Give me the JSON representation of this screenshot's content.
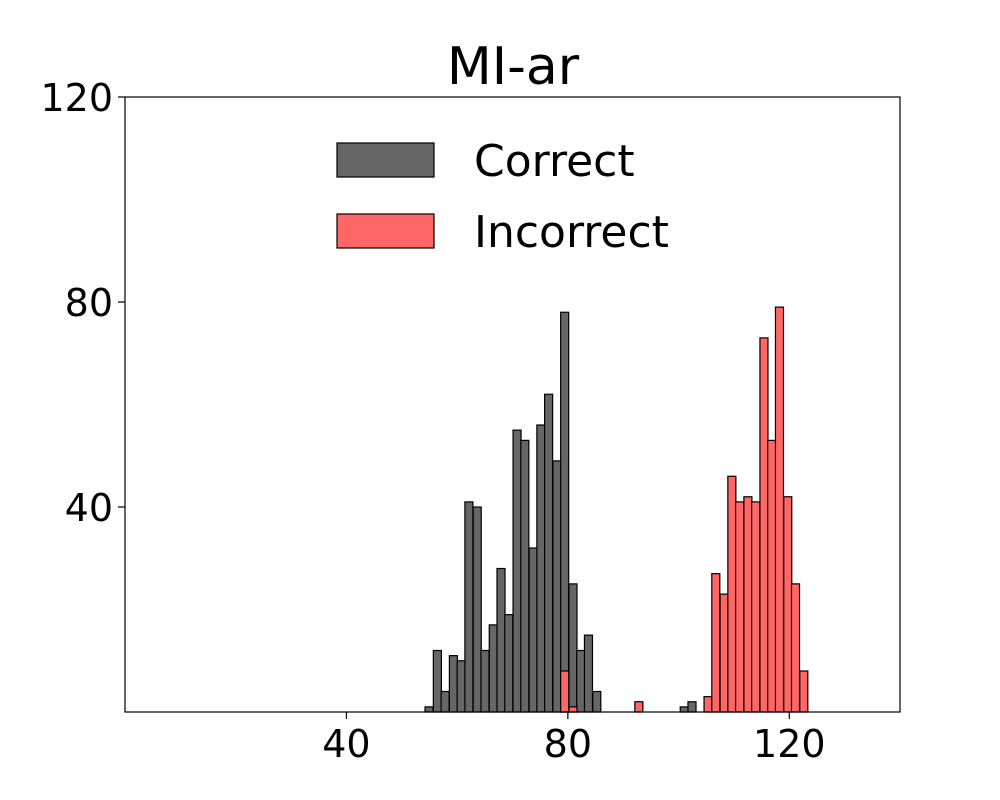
{
  "chart_data": {
    "type": "bar",
    "title": "MI-ar",
    "xlabel": "",
    "ylabel": "",
    "xlim": [
      0,
      140
    ],
    "ylim": [
      0,
      120
    ],
    "xticks": [
      40,
      80,
      120
    ],
    "yticks": [
      40,
      80,
      120
    ],
    "grid": false,
    "legend_position": "top-center",
    "bin_width": 1.45,
    "series": [
      {
        "name": "Correct",
        "color": "#666666",
        "bins": [
          {
            "x": 54.2,
            "count": 1
          },
          {
            "x": 55.7,
            "count": 12
          },
          {
            "x": 57.1,
            "count": 4
          },
          {
            "x": 58.6,
            "count": 11
          },
          {
            "x": 60.0,
            "count": 10
          },
          {
            "x": 61.4,
            "count": 41
          },
          {
            "x": 62.9,
            "count": 40
          },
          {
            "x": 64.3,
            "count": 12
          },
          {
            "x": 65.8,
            "count": 17
          },
          {
            "x": 67.2,
            "count": 28
          },
          {
            "x": 68.6,
            "count": 19
          },
          {
            "x": 70.1,
            "count": 55
          },
          {
            "x": 71.5,
            "count": 53
          },
          {
            "x": 73.0,
            "count": 32
          },
          {
            "x": 74.4,
            "count": 56
          },
          {
            "x": 75.8,
            "count": 62
          },
          {
            "x": 77.3,
            "count": 49
          },
          {
            "x": 78.7,
            "count": 78
          },
          {
            "x": 80.2,
            "count": 25
          },
          {
            "x": 81.6,
            "count": 12
          },
          {
            "x": 83.0,
            "count": 15
          },
          {
            "x": 84.5,
            "count": 4
          },
          {
            "x": 100.3,
            "count": 1
          },
          {
            "x": 101.7,
            "count": 2
          }
        ]
      },
      {
        "name": "Incorrect",
        "color": "#ff6666",
        "bins": [
          {
            "x": 78.7,
            "count": 8
          },
          {
            "x": 80.2,
            "count": 1
          },
          {
            "x": 92.1,
            "count": 2
          },
          {
            "x": 104.6,
            "count": 3
          },
          {
            "x": 106.0,
            "count": 27
          },
          {
            "x": 107.5,
            "count": 23
          },
          {
            "x": 108.9,
            "count": 46
          },
          {
            "x": 110.3,
            "count": 41
          },
          {
            "x": 111.8,
            "count": 42
          },
          {
            "x": 113.2,
            "count": 41
          },
          {
            "x": 114.7,
            "count": 73
          },
          {
            "x": 116.1,
            "count": 53
          },
          {
            "x": 117.5,
            "count": 79
          },
          {
            "x": 119.0,
            "count": 42
          },
          {
            "x": 120.4,
            "count": 25
          },
          {
            "x": 121.9,
            "count": 8
          }
        ]
      }
    ]
  }
}
